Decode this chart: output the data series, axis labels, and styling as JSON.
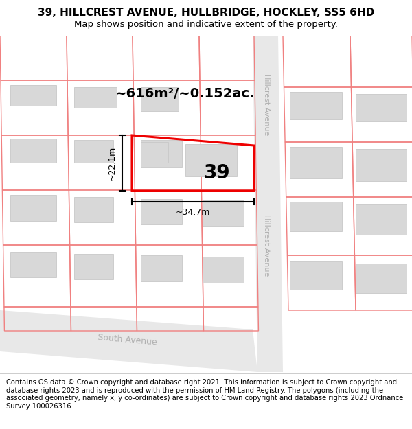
{
  "title": "39, HILLCREST AVENUE, HULLBRIDGE, HOCKLEY, SS5 6HD",
  "subtitle": "Map shows position and indicative extent of the property.",
  "footer": "Contains OS data © Crown copyright and database right 2021. This information is subject to Crown copyright and database rights 2023 and is reproduced with the permission of HM Land Registry. The polygons (including the associated geometry, namely x, y co-ordinates) are subject to Crown copyright and database rights 2023 Ordnance Survey 100026316.",
  "map_bg": "#ffffff",
  "road_color": "#e8e8e8",
  "road_label_color": "#b0b0b0",
  "plot_outline_color": "#f08080",
  "highlight_color": "#ee0000",
  "building_fill": "#d8d8d8",
  "building_edge": "#c8c8c8",
  "dim_color": "#111111",
  "label_39": "39",
  "area_label": "~616m²/~0.152ac.",
  "width_label": "~34.7m",
  "height_label": "~22.1m",
  "title_fontsize": 11,
  "subtitle_fontsize": 9.5,
  "footer_fontsize": 7.2,
  "map_area_label_fontsize": 14,
  "map_39_fontsize": 20
}
